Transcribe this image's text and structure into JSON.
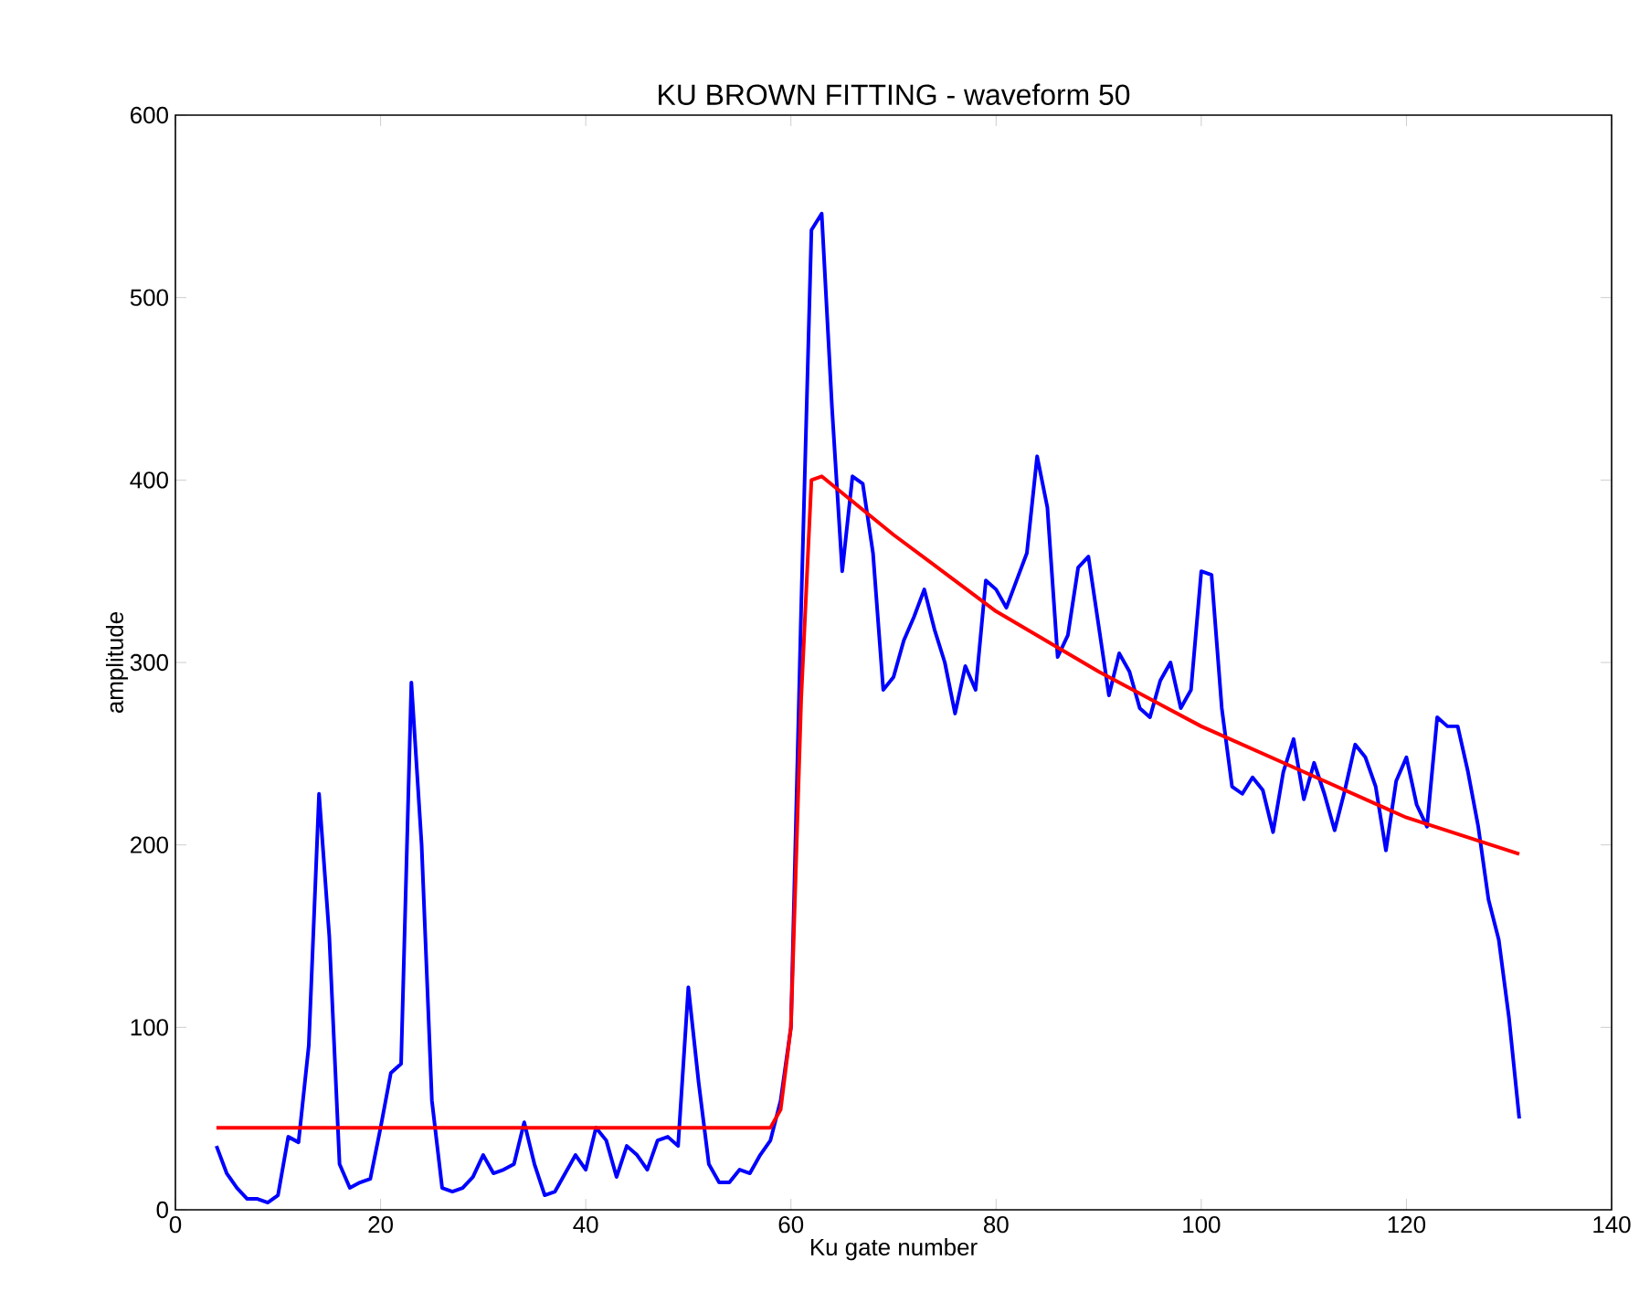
{
  "chart_data": {
    "type": "line",
    "title": "KU BROWN FITTING - waveform 50",
    "xlabel": "Ku gate number",
    "ylabel": "amplitude",
    "xlim": [
      0,
      140
    ],
    "xticks": [
      0,
      20,
      40,
      60,
      80,
      100,
      120,
      140
    ],
    "ylim": [
      0,
      600
    ],
    "yticks": [
      0,
      100,
      200,
      300,
      400,
      500,
      600
    ],
    "grid": false,
    "marker": "none",
    "line_style": "solid",
    "series": [
      {
        "color": "#0000ff",
        "x": [
          4,
          5,
          6,
          7,
          8,
          9,
          10,
          11,
          12,
          13,
          14,
          15,
          16,
          17,
          18,
          19,
          20,
          21,
          22,
          23,
          24,
          25,
          26,
          27,
          28,
          29,
          30,
          31,
          32,
          33,
          34,
          35,
          36,
          37,
          38,
          39,
          40,
          41,
          42,
          43,
          44,
          45,
          46,
          47,
          48,
          49,
          50,
          51,
          52,
          53,
          54,
          55,
          56,
          57,
          58,
          59,
          60,
          61,
          62,
          63,
          64,
          65,
          66,
          67,
          68,
          69,
          70,
          71,
          72,
          73,
          74,
          75,
          76,
          77,
          78,
          79,
          80,
          81,
          82,
          83,
          84,
          85,
          86,
          87,
          88,
          89,
          90,
          91,
          92,
          93,
          94,
          95,
          96,
          97,
          98,
          99,
          100,
          101,
          102,
          103,
          104,
          105,
          106,
          107,
          108,
          109,
          110,
          111,
          112,
          113,
          114,
          115,
          116,
          117,
          118,
          119,
          120,
          121,
          122,
          123,
          124,
          125,
          126,
          127,
          128,
          129,
          130,
          131
        ],
        "values": [
          35,
          20,
          12,
          6,
          6,
          4,
          8,
          40,
          37,
          90,
          228,
          150,
          25,
          12,
          15,
          17,
          45,
          75,
          80,
          289,
          200,
          60,
          12,
          10,
          12,
          18,
          30,
          20,
          22,
          25,
          48,
          25,
          8,
          10,
          20,
          30,
          22,
          45,
          38,
          18,
          35,
          30,
          22,
          38,
          40,
          35,
          122,
          70,
          25,
          15,
          15,
          22,
          20,
          30,
          38,
          60,
          100,
          330,
          537,
          546,
          440,
          350,
          402,
          398,
          360,
          285,
          292,
          312,
          325,
          340,
          318,
          300,
          272,
          298,
          285,
          345,
          340,
          330,
          345,
          360,
          413,
          385,
          303,
          315,
          352,
          358,
          320,
          282,
          305,
          295,
          275,
          270,
          290,
          300,
          275,
          285,
          350,
          348,
          275,
          232,
          228,
          237,
          230,
          207,
          240,
          258,
          225,
          245,
          228,
          208,
          230,
          255,
          248,
          232,
          197,
          235,
          248,
          222,
          210,
          270,
          265,
          265,
          240,
          210,
          170,
          148,
          105,
          50
        ]
      },
      {
        "color": "#ff0000",
        "x": [
          4,
          58,
          59,
          60,
          61,
          62,
          63,
          70,
          80,
          90,
          100,
          110,
          120,
          131
        ],
        "values": [
          45,
          45,
          55,
          100,
          280,
          400,
          402,
          370,
          328,
          295,
          265,
          240,
          215,
          195
        ]
      }
    ]
  }
}
